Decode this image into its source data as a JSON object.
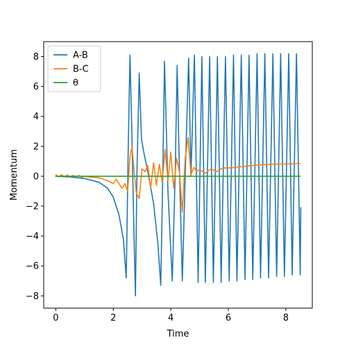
{
  "chart_data": {
    "type": "line",
    "xlabel": "Time",
    "ylabel": "Momentum",
    "xlim": [
      -0.42,
      8.92
    ],
    "ylim": [
      -8.82,
      9.0
    ],
    "xticks": [
      0,
      2,
      4,
      6,
      8
    ],
    "yticks": [
      -8,
      -6,
      -4,
      -2,
      0,
      2,
      4,
      6,
      8
    ],
    "xtick_labels": [
      "0",
      "2",
      "4",
      "6",
      "8"
    ],
    "ytick_labels": [
      "−8",
      "−6",
      "−4",
      "−2",
      "0",
      "2",
      "4",
      "6",
      "8"
    ],
    "grid": false,
    "legend_position": "top-left",
    "series": [
      {
        "name": "A-B",
        "color": "#1f77b4",
        "x": [
          0.0,
          0.5,
          1.0,
          1.5,
          1.8,
          2.0,
          2.2,
          2.35,
          2.45,
          2.52,
          2.58,
          2.65,
          2.72,
          2.77,
          2.82,
          2.9,
          2.98,
          3.05,
          3.2,
          3.4,
          3.55,
          3.65,
          3.72,
          3.78,
          3.9,
          4.05,
          4.15,
          4.22,
          4.28,
          4.4,
          4.5,
          4.62,
          4.7,
          4.82,
          4.95,
          5.08,
          5.2,
          5.35,
          5.48,
          5.62,
          5.75,
          5.9,
          6.03,
          6.18,
          6.3,
          6.45,
          6.58,
          6.72,
          6.85,
          7.0,
          7.12,
          7.27,
          7.4,
          7.55,
          7.68,
          7.82,
          7.95,
          8.1,
          8.22,
          8.37,
          8.5,
          8.52
        ],
        "y": [
          0.0,
          -0.05,
          -0.15,
          -0.4,
          -0.8,
          -1.4,
          -2.6,
          -4.2,
          -6.8,
          2.0,
          8.1,
          2.5,
          -4.0,
          -8.0,
          0.0,
          6.9,
          2.5,
          1.7,
          0.3,
          -1.8,
          -4.5,
          -7.3,
          0.0,
          7.7,
          -1.0,
          -7.0,
          0.0,
          7.4,
          2.0,
          -7.0,
          0.0,
          7.9,
          0.0,
          8.1,
          -7.1,
          8.0,
          -7.1,
          8.0,
          -7.1,
          8.0,
          -7.1,
          8.0,
          -7.0,
          8.1,
          -7.0,
          8.1,
          -6.9,
          8.1,
          -6.9,
          8.2,
          -6.8,
          8.2,
          -6.8,
          8.2,
          -6.7,
          8.2,
          -6.7,
          8.2,
          -6.6,
          8.2,
          -6.6,
          -2.1
        ]
      },
      {
        "name": "B-C",
        "color": "#ff7f0e",
        "x": [
          0.0,
          0.1,
          0.2,
          0.3,
          0.4,
          0.5,
          0.6,
          0.7,
          0.8,
          0.9,
          1.0,
          1.2,
          1.4,
          1.6,
          1.8,
          2.0,
          2.1,
          2.2,
          2.3,
          2.4,
          2.5,
          2.58,
          2.65,
          2.72,
          2.8,
          2.9,
          3.0,
          3.1,
          3.2,
          3.3,
          3.4,
          3.5,
          3.6,
          3.7,
          3.8,
          3.9,
          4.0,
          4.1,
          4.2,
          4.3,
          4.4,
          4.5,
          4.6,
          4.7,
          4.8,
          4.9,
          5.0,
          5.2,
          5.4,
          5.6,
          5.8,
          6.0,
          6.5,
          7.0,
          7.5,
          8.0,
          8.5
        ],
        "y": [
          0.1,
          -0.05,
          0.1,
          -0.05,
          0.08,
          -0.05,
          0.06,
          -0.05,
          0.05,
          -0.06,
          0.0,
          -0.06,
          -0.08,
          -0.15,
          -0.3,
          -0.5,
          -0.2,
          -0.5,
          -0.8,
          -0.5,
          -1.0,
          1.3,
          2.0,
          0.4,
          -1.1,
          -1.5,
          0.5,
          0.3,
          0.7,
          -0.8,
          0.9,
          -0.6,
          0.8,
          -0.4,
          1.8,
          -0.3,
          1.6,
          -0.8,
          1.2,
          0.3,
          -2.4,
          1.2,
          2.6,
          0.1,
          0.6,
          0.3,
          0.45,
          0.2,
          0.5,
          0.3,
          0.55,
          0.55,
          0.65,
          0.75,
          0.8,
          0.82,
          0.85
        ]
      },
      {
        "name": "θ",
        "color": "#2ca02c",
        "x": [
          0.0,
          8.5
        ],
        "y": [
          0.0,
          0.0
        ]
      }
    ]
  }
}
